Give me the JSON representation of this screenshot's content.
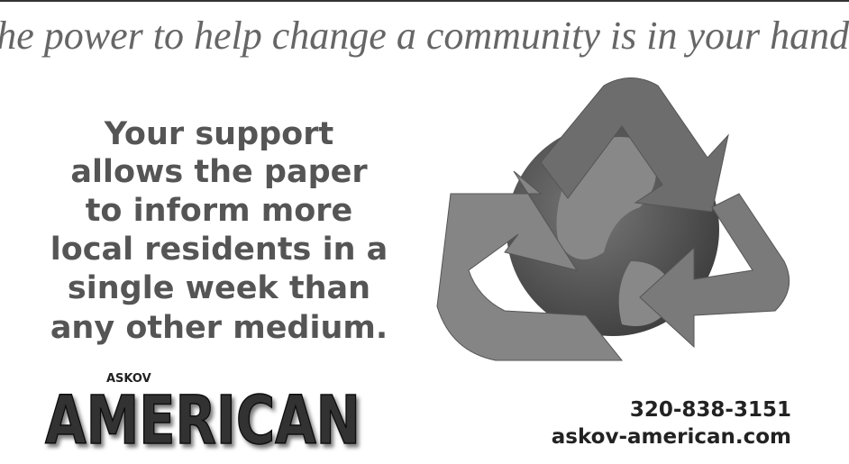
{
  "headline": "The power to help change a community is in your hands.",
  "body": {
    "lines": [
      "Your support",
      "allows the paper",
      "to inform more",
      "local residents in a",
      "single week than",
      "any other medium."
    ]
  },
  "logo": {
    "small": "ASKOV",
    "name": "AMERICAN"
  },
  "contact": {
    "phone": "320-838-3151",
    "website": "askov-american.com"
  }
}
